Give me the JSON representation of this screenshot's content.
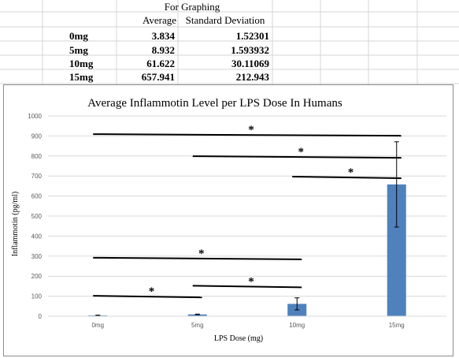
{
  "table": {
    "title": "For Graphing",
    "headers": [
      "Average",
      "Standard Deviation"
    ],
    "rows": [
      {
        "label": "0mg",
        "average": "3.834",
        "sd": "1.52301"
      },
      {
        "label": "5mg",
        "average": "8.932",
        "sd": "1.593932"
      },
      {
        "label": "10mg",
        "average": "61.622",
        "sd": "30.11069"
      },
      {
        "label": "15mg",
        "average": "657.941",
        "sd": "212.943"
      }
    ]
  },
  "colors": {
    "bar": "#4f81bd",
    "grid": "#d9d9d9",
    "sheet_grid": "#d4d4d4"
  },
  "chart_data": {
    "type": "bar",
    "title": "Average Inflammotin Level per LPS Dose In Humans",
    "xlabel": "LPS Dose (mg)",
    "ylabel": "Inflammotin (pg/ml)",
    "categories": [
      "0mg",
      "5mg",
      "10mg",
      "15mg"
    ],
    "values": [
      3.834,
      8.932,
      61.622,
      657.941
    ],
    "errors": [
      1.52301,
      1.593932,
      30.11069,
      212.943
    ],
    "ylim": [
      0,
      1000
    ],
    "yticks": [
      0,
      100,
      200,
      300,
      400,
      500,
      600,
      700,
      800,
      900,
      1000
    ],
    "grid": true,
    "significance": [
      {
        "from": "0mg",
        "to": "15mg",
        "y": 905,
        "mark": "*"
      },
      {
        "from": "5mg",
        "to": "15mg",
        "y": 795,
        "mark": "*"
      },
      {
        "from": "10mg",
        "to": "15mg",
        "y": 693,
        "mark": "*"
      },
      {
        "from": "0mg",
        "to": "10mg",
        "y": 288,
        "mark": "*"
      },
      {
        "from": "5mg",
        "to": "10mg",
        "y": 148,
        "mark": "*"
      },
      {
        "from": "0mg",
        "to": "5mg",
        "y": 98,
        "mark": "*"
      }
    ]
  }
}
